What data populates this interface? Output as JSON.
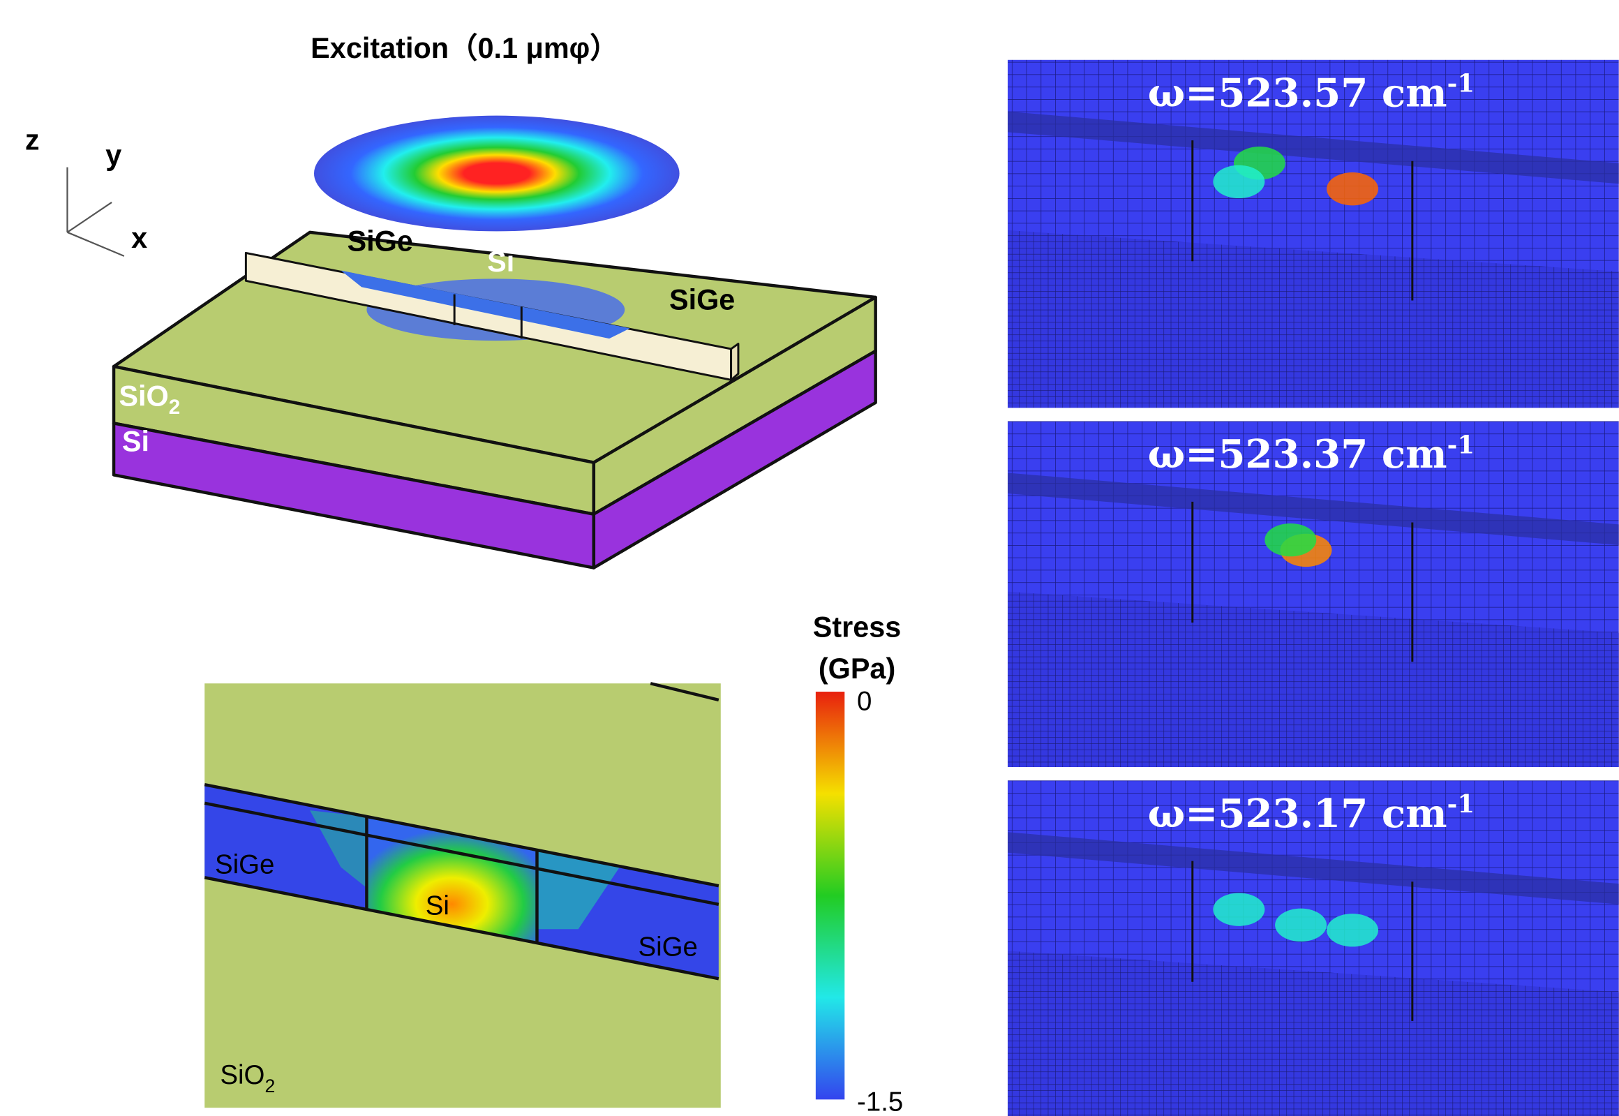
{
  "title": "Excitation（0.1 μmφ）",
  "axes": {
    "z": "z",
    "y": "y",
    "x": "x"
  },
  "structure": {
    "sige_left": "SiGe",
    "si_top": "Si",
    "sige_right": "SiGe",
    "oxide": {
      "text": "SiO",
      "sub": "2"
    },
    "substrate": "Si"
  },
  "cross_section": {
    "sige_left": "SiGe",
    "si": "Si",
    "sige_right": "SiGe",
    "oxide": {
      "text": "SiO",
      "sub": "2"
    }
  },
  "colorbar": {
    "title": [
      "Stress",
      "(GPa)"
    ],
    "max": 0,
    "min": -1.5
  },
  "panels": [
    {
      "label": "ω=523.57 cm",
      "sup": "-1"
    },
    {
      "label": "ω=523.37 cm",
      "sup": "-1"
    },
    {
      "label": "ω=523.17 cm",
      "sup": "-1"
    }
  ]
}
